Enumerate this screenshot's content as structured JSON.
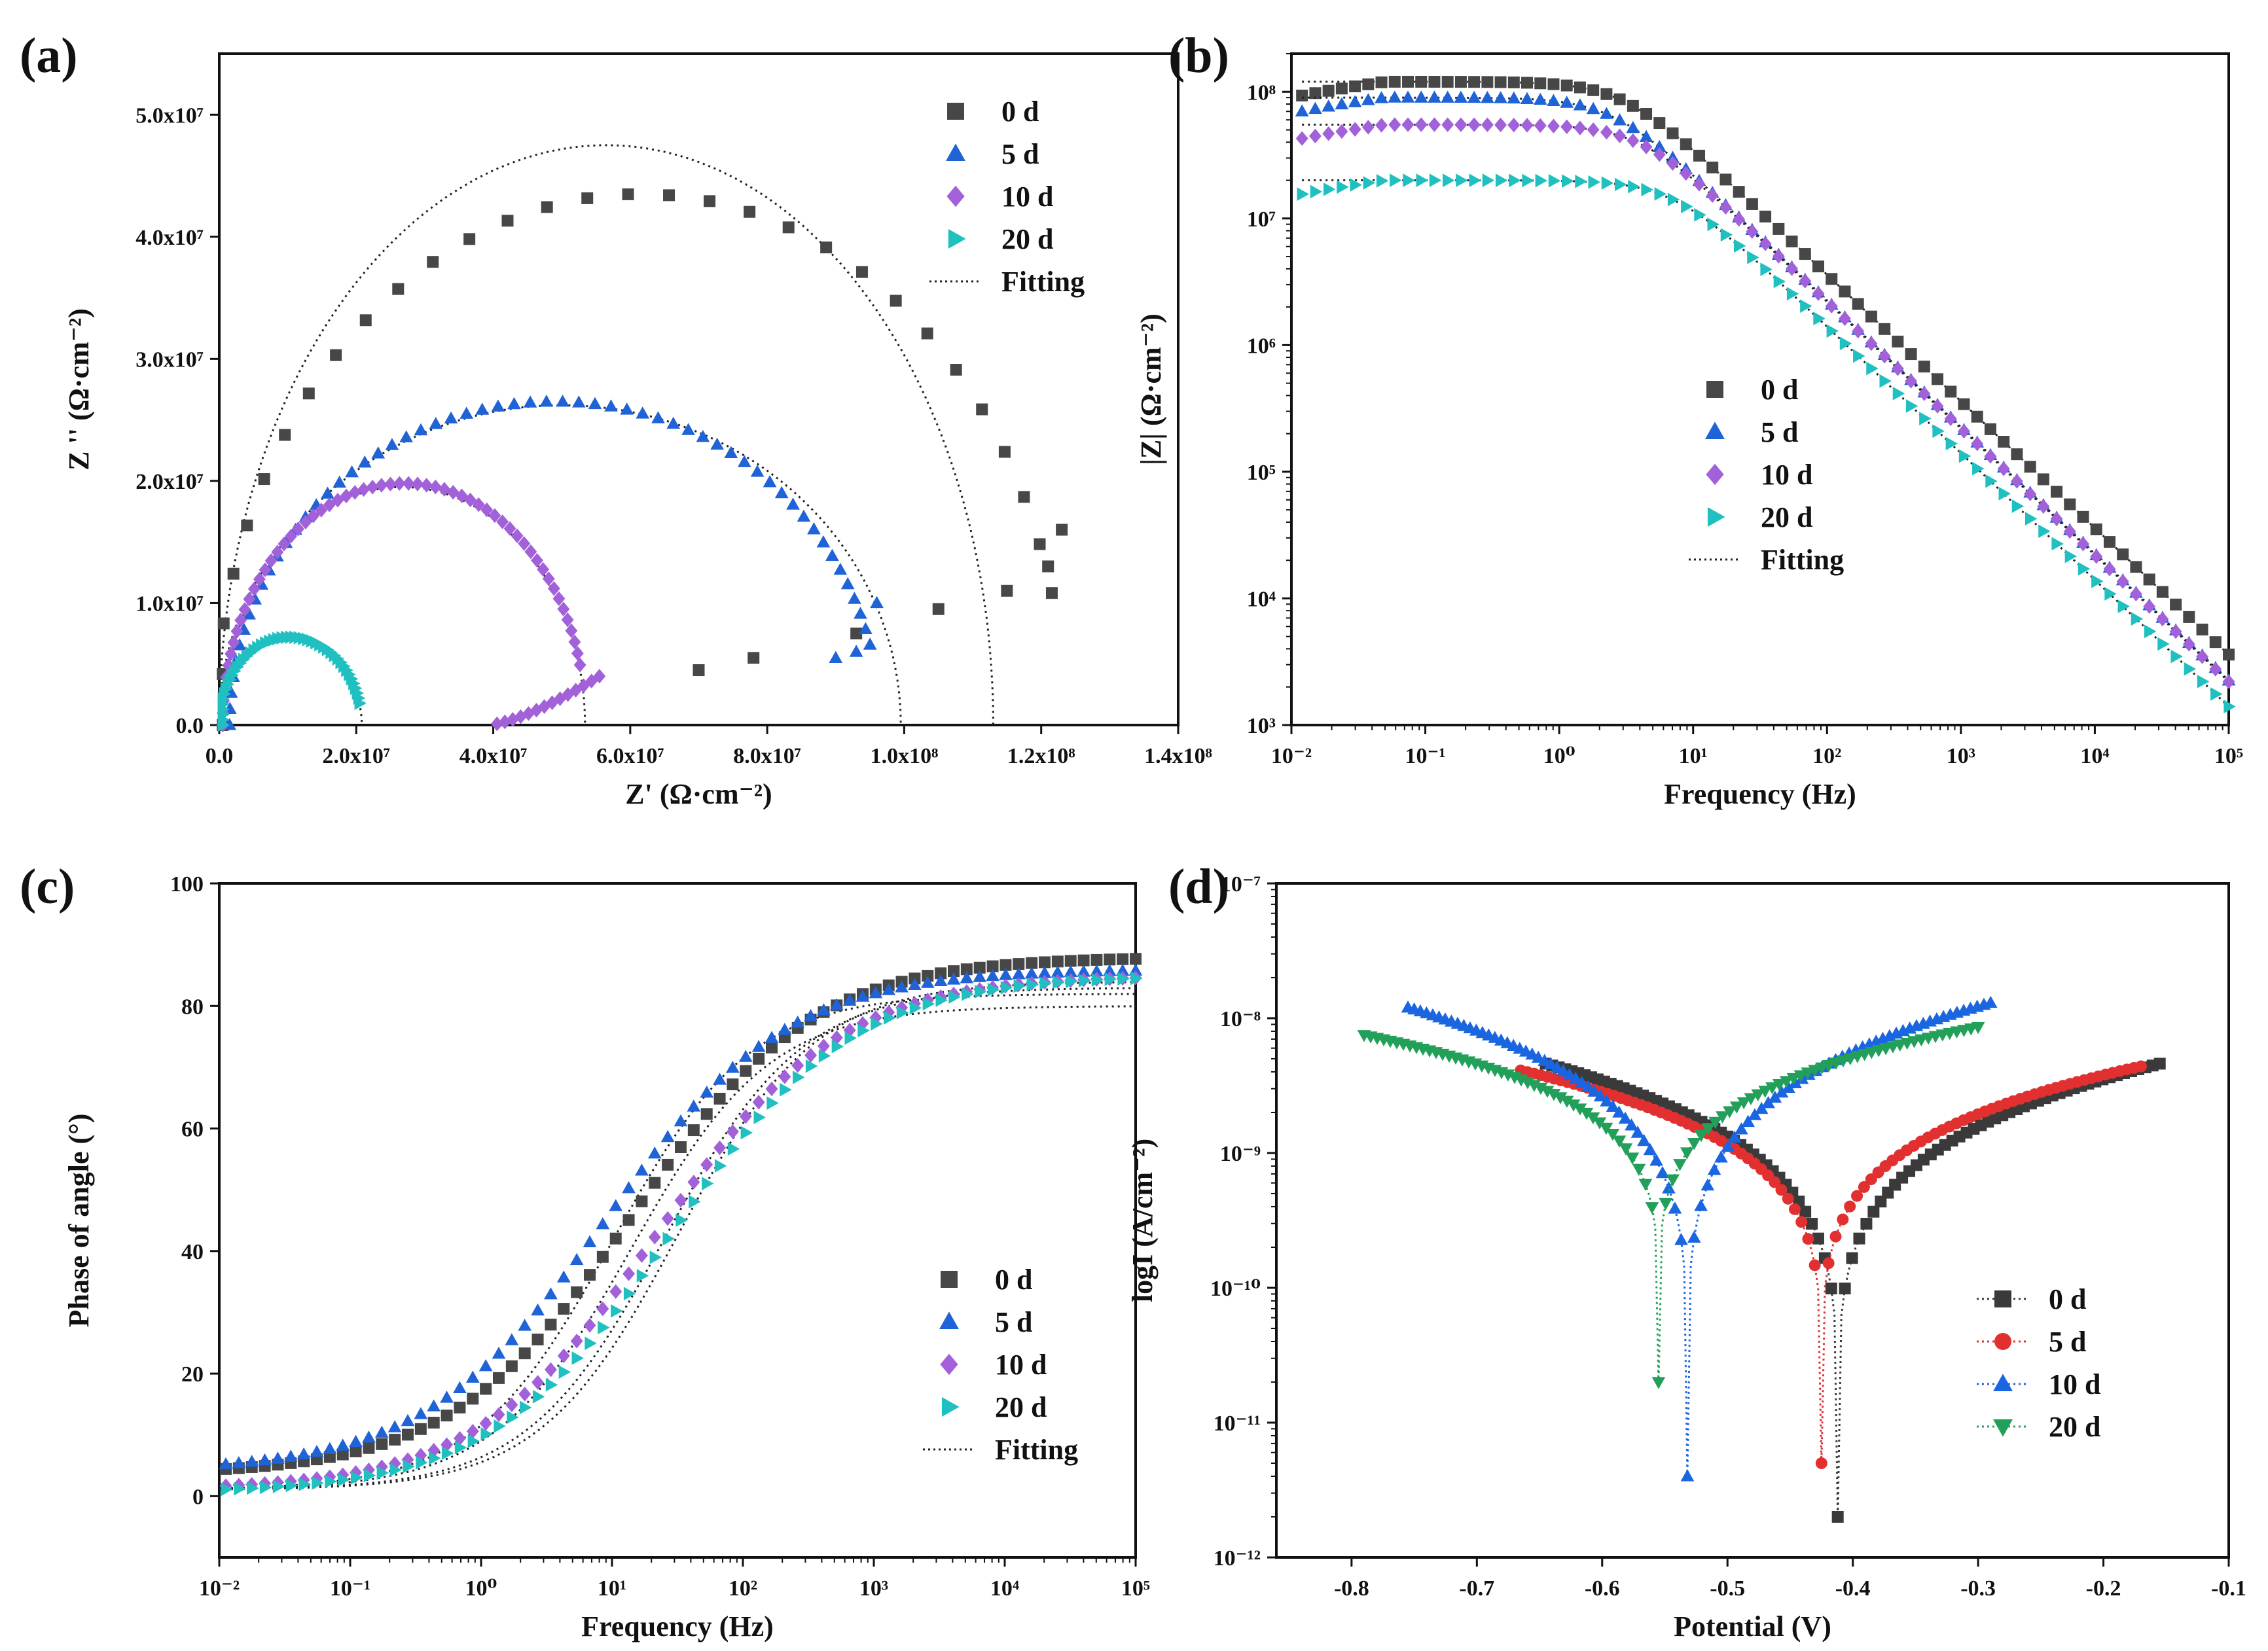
{
  "figure_title": "",
  "chart_data": [
    {
      "panel": "(a)",
      "type": "scatter",
      "title": "",
      "xlabel": "Z' (Ω·cm⁻²)",
      "ylabel": "Z '' (Ω·cm⁻²)",
      "xlim": [
        0,
        140000000.0
      ],
      "ylim": [
        0,
        55000000.0
      ],
      "xscale": "linear",
      "yscale": "linear",
      "xticks": [
        0,
        20000000.0,
        40000000.0,
        60000000.0,
        80000000.0,
        100000000.0,
        120000000.0,
        140000000.0
      ],
      "xticklabels": [
        "0.0",
        "2.0x10⁷",
        "4.0x10⁷",
        "6.0x10⁷",
        "8.0x10⁷",
        "1.0x10⁸",
        "1.2x10⁸",
        "1.4x10⁸"
      ],
      "yticks": [
        0,
        10000000.0,
        20000000.0,
        30000000.0,
        40000000.0,
        50000000.0
      ],
      "yticklabels": [
        "0.0",
        "1.0x10⁷",
        "2.0x10⁷",
        "3.0x10⁷",
        "4.0x10⁷",
        "5.0x10⁷"
      ],
      "legend_position": "top-right",
      "legend": [
        "0 d",
        "5 d",
        "10 d",
        "20 d",
        "Fitting"
      ],
      "grid": false
    },
    {
      "panel": "(b)",
      "type": "scatter",
      "title": "",
      "xlabel": "Frequency (Hz)",
      "ylabel": "|Z| (Ω·cm⁻²)",
      "xlim": [
        0.01,
        100000
      ],
      "ylim": [
        1000,
        200000000
      ],
      "xscale": "log",
      "yscale": "log",
      "xticks": [
        0.01,
        0.1,
        1,
        10,
        100,
        1000,
        10000,
        100000
      ],
      "xticklabels": [
        "10⁻²",
        "10⁻¹",
        "10⁰",
        "10¹",
        "10²",
        "10³",
        "10⁴",
        "10⁵"
      ],
      "yticks": [
        1000,
        10000,
        100000,
        1000000,
        10000000,
        100000000
      ],
      "yticklabels": [
        "10³",
        "10⁴",
        "10⁵",
        "10⁶",
        "10⁷",
        "10⁸"
      ],
      "legend_position": "center",
      "legend": [
        "0 d",
        "5 d",
        "10 d",
        "20 d",
        "Fitting"
      ],
      "grid": false
    },
    {
      "panel": "(c)",
      "type": "scatter",
      "title": "",
      "xlabel": "Frequency (Hz)",
      "ylabel": "Phase of angle (°)",
      "xlim": [
        0.01,
        100000
      ],
      "ylim": [
        -10,
        100
      ],
      "xscale": "log",
      "yscale": "linear",
      "xticks": [
        0.01,
        0.1,
        1,
        10,
        100,
        1000,
        10000,
        100000
      ],
      "xticklabels": [
        "10⁻²",
        "10⁻¹",
        "10⁰",
        "10¹",
        "10²",
        "10³",
        "10⁴",
        "10⁵"
      ],
      "yticks": [
        0,
        20,
        40,
        60,
        80,
        100
      ],
      "yticklabels": [
        "0",
        "20",
        "40",
        "60",
        "80",
        "100"
      ],
      "legend_position": "bottom-right",
      "legend": [
        "0 d",
        "5 d",
        "10 d",
        "20 d",
        "Fitting"
      ],
      "grid": false
    },
    {
      "panel": "(d)",
      "type": "scatter",
      "title": "",
      "xlabel": "Potential (V)",
      "ylabel": "logI (A/cm⁻²)",
      "xlim": [
        -0.86,
        -0.1
      ],
      "ylim": [
        1e-12,
        1e-07
      ],
      "xscale": "linear",
      "yscale": "log",
      "xticks": [
        -0.8,
        -0.7,
        -0.6,
        -0.5,
        -0.4,
        -0.3,
        -0.2,
        -0.1
      ],
      "xticklabels": [
        "-0.8",
        "-0.7",
        "-0.6",
        "-0.5",
        "-0.4",
        "-0.3",
        "-0.2",
        "-0.1"
      ],
      "yticks": [
        1e-12,
        1e-11,
        1e-10,
        1e-09,
        1e-08,
        1e-07
      ],
      "yticklabels": [
        "10⁻¹²",
        "10⁻¹¹",
        "10⁻¹⁰",
        "10⁻⁹",
        "10⁻⁸",
        "10⁻⁷"
      ],
      "legend_position": "bottom-right",
      "legend": [
        "0 d",
        "5 d",
        "10 d",
        "20 d"
      ],
      "grid": false
    }
  ],
  "series_styles": [
    {
      "name": "0 d",
      "color": "#474747",
      "marker": "square"
    },
    {
      "name": "5 d",
      "color": "#1f63d6",
      "marker": "triangle-up"
    },
    {
      "name": "10 d",
      "color": "#a261d9",
      "marker": "diamond"
    },
    {
      "name": "20 d",
      "color": "#20c0c0",
      "marker": "triangle-right"
    },
    {
      "name": "Fitting",
      "color": "#222222",
      "marker": "dotted-line"
    }
  ],
  "tafel_styles": [
    {
      "name": "0 d",
      "color": "#3a3a3a",
      "marker": "square"
    },
    {
      "name": "5 d",
      "color": "#e23030",
      "marker": "circle"
    },
    {
      "name": "10 d",
      "color": "#1a66e0",
      "marker": "triangle-up"
    },
    {
      "name": "20 d",
      "color": "#22a05a",
      "marker": "triangle-down"
    }
  ],
  "nyquist_series": {
    "0 d": {
      "center": [
        61500000.0,
        0
      ],
      "rx": 62000000.0,
      "ry": 43500000.0,
      "shape_note": "capacitive arc returning near x=1.23e8 then back to x=7e7"
    },
    "5 d": {
      "center": [
        49000000.0,
        0
      ],
      "rx": 47500000.0,
      "ry": 26500000.0
    },
    "10 d": {
      "center": [
        27000000.0,
        0
      ],
      "rx": 26500000.0,
      "ry": 19800000.0
    },
    "20 d": {
      "center": [
        10400000.0,
        0
      ],
      "rx": 10400000.0,
      "ry": 7200000.0
    },
    "fits": [
      {
        "center": [
          56500000.0,
          0
        ],
        "rx": 56500000.0,
        "ry": 47500000.0,
        "x_end": 113000000.0
      },
      {
        "center": [
          50000000.0,
          0
        ],
        "rx": 49500000.0,
        "ry": 26200000.0,
        "x_end": 100000000.0
      },
      {
        "center": [
          26700000.0,
          0
        ],
        "rx": 26700000.0,
        "ry": 19500000.0,
        "x_end": 53500000.0
      },
      {
        "center": [
          10400000.0,
          0
        ],
        "rx": 10400000.0,
        "ry": 7000000.0,
        "x_end": 20800000.0
      }
    ]
  },
  "bode_modulus_series": {
    "0 d": {
      "R": 120000000.0,
      "fc": 3.0
    },
    "5 d": {
      "R": 90000000.0,
      "fc": 2.5
    },
    "10 d": {
      "R": 55000000.0,
      "fc": 4.0
    },
    "20 d": {
      "R": 20000000.0,
      "fc": 7.0
    },
    "points_from_hz": 0.012,
    "points_to_hz": 100000
  },
  "bode_phase_series": {
    "0 d": {
      "low": 3.5,
      "high": 88,
      "mid_log_f": 1.15
    },
    "5 d": {
      "low": 4.0,
      "high": 86,
      "mid_log_f": 0.95
    },
    "10 d": {
      "low": 1.0,
      "high": 85,
      "mid_log_f": 1.35
    },
    "20 d": {
      "low": 0.5,
      "high": 85,
      "mid_log_f": 1.45
    }
  },
  "tafel_series": {
    "0 d": {
      "Ecorr": -0.412,
      "range": [
        -0.645,
        -0.155
      ],
      "Imin": 2e-12,
      "anodic_end": 4.6e-09,
      "cathodic_end": 4.6e-09
    },
    "5 d": {
      "Ecorr": -0.425,
      "range": [
        -0.665,
        -0.17
      ],
      "Imin": 5e-12,
      "anodic_end": 4.4e-09,
      "cathodic_end": 4.1e-09
    },
    "10 d": {
      "Ecorr": -0.532,
      "range": [
        -0.755,
        -0.29
      ],
      "Imin": 4e-12,
      "anodic_end": 1.3e-08,
      "cathodic_end": 1.2e-08
    },
    "20 d": {
      "Ecorr": -0.555,
      "range": [
        -0.79,
        -0.3
      ],
      "Imin": 2e-11,
      "anodic_end": 8.6e-09,
      "cathodic_end": 7.5e-09
    }
  }
}
